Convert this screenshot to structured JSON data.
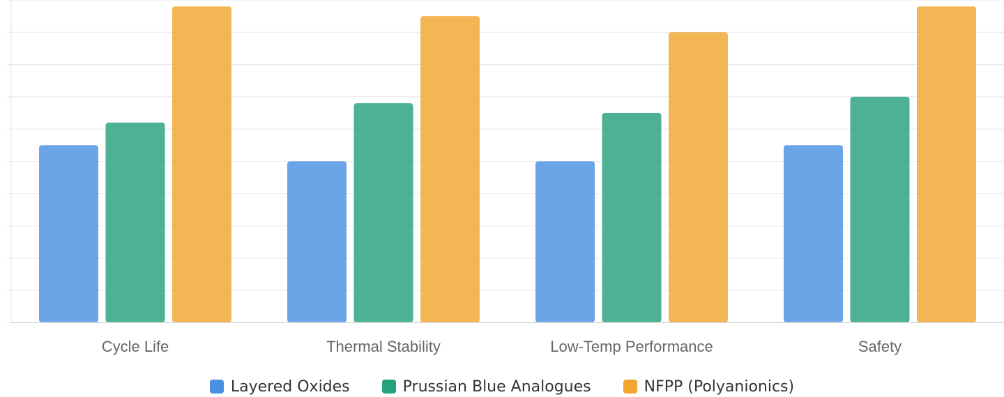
{
  "chart_data": {
    "type": "bar",
    "categories": [
      "Cycle Life",
      "Thermal Stability",
      "Low-Temp Performance",
      "Safety"
    ],
    "series": [
      {
        "name": "Layered Oxides",
        "color": "#4a90e2",
        "values": [
          5.5,
          5,
          5,
          5.5
        ]
      },
      {
        "name": "Prussian Blue Analogues",
        "color": "#26a17b",
        "values": [
          6.2,
          6.8,
          6.5,
          7
        ]
      },
      {
        "name": "NFPP (Polyanionics)",
        "color": "#f2a530",
        "values": [
          9.8,
          9.5,
          9,
          9.8
        ]
      }
    ],
    "title": "",
    "xlabel": "",
    "ylabel": "",
    "ylim": [
      0,
      10
    ],
    "grid": true,
    "legend": "bottom"
  }
}
